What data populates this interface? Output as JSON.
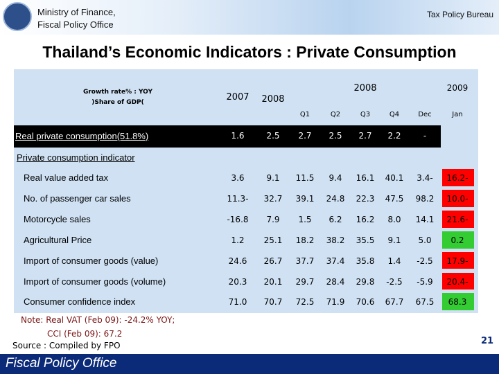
{
  "header": {
    "org_line1": "Ministry of Finance,",
    "org_line2": "Fiscal Policy Office",
    "bureau": "Tax Policy Bureau"
  },
  "title": "Thailand’s Economic Indicators : Private Consumption",
  "table": {
    "corner": [
      "Growth rate% : YOY",
      ")Share of GDP("
    ],
    "year_cols": [
      "2007",
      "2008"
    ],
    "group_2008": "2008",
    "group_2009": "2009",
    "subcols": [
      "Q1",
      "Q2",
      "Q3",
      "Q4",
      "Dec",
      "Jan"
    ],
    "headline": {
      "label": "Real private consumption(51.8%)",
      "cells": [
        "1.6",
        "2.5",
        "2.7",
        "2.5",
        "2.7",
        "2.2",
        "-"
      ]
    },
    "section_label": "Private consumption indicator",
    "rows": [
      {
        "label": "Real value added tax",
        "cells": [
          "3.6",
          "9.1",
          "11.5",
          "9.4",
          "16.1",
          "40.1",
          "3.4-",
          "16.2-"
        ],
        "jan_fill": "#ff0000"
      },
      {
        "label": "No. of passenger car sales",
        "cells": [
          "11.3-",
          "32.7",
          "39.1",
          "24.8",
          "22.3",
          "47.5",
          "98.2",
          "10.0-"
        ],
        "jan_fill": "#ff0000"
      },
      {
        "label": "Motorcycle sales",
        "cells": [
          "-16.8",
          "7.9",
          "1.5",
          "6.2",
          "16.2",
          "8.0",
          "14.1",
          "21.6-"
        ],
        "jan_fill": "#ff0000"
      },
      {
        "label": "Agricultural Price",
        "cells": [
          "1.2",
          "25.1",
          "18.2",
          "38.2",
          "35.5",
          "9.1",
          "5.0",
          "0.2"
        ],
        "jan_fill": "#33cc33"
      },
      {
        "label": "Import of consumer goods (value)",
        "cells": [
          "24.6",
          "26.7",
          "37.7",
          "37.4",
          "35.8",
          "1.4",
          "-2.5",
          "17.9-"
        ],
        "jan_fill": "#ff0000"
      },
      {
        "label": "Import of consumer goods (volume)",
        "cells": [
          "20.3",
          "20.1",
          "29.7",
          "28.4",
          "29.8",
          "-2.5",
          "-5.9",
          "20.4-"
        ],
        "jan_fill": "#ff0000"
      },
      {
        "label": "Consumer confidence index",
        "cells": [
          "71.0",
          "70.7",
          "72.5",
          "71.9",
          "70.6",
          "67.7",
          "67.5",
          "68.3"
        ],
        "jan_fill": "#33cc33"
      }
    ]
  },
  "notes": {
    "line1": "Note: Real VAT (Feb 09): -24.2% YOY;",
    "line2": "CCI (Feb 09): 67.2",
    "source": "Source : Compiled by FPO"
  },
  "page_number": "21",
  "footer": "Fiscal Policy Office"
}
